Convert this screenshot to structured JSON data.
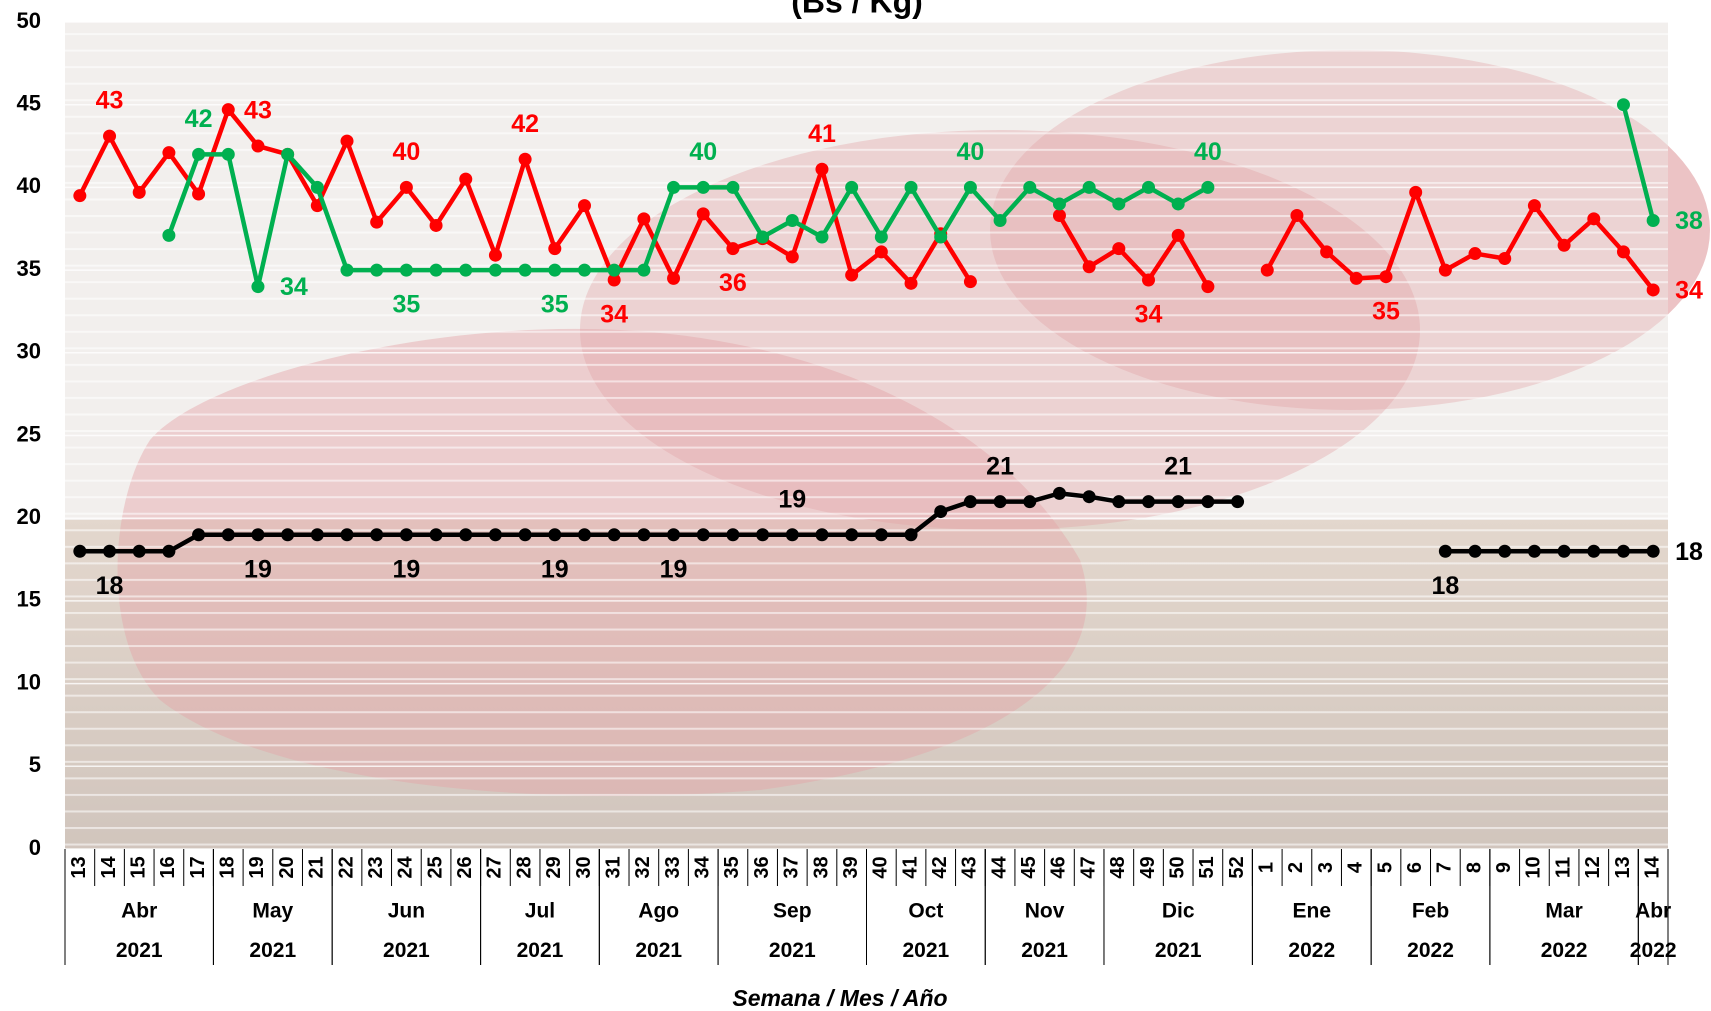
{
  "chart_data": {
    "type": "line",
    "title": "(Bs / Kg)",
    "x_label": "Semana / Mes / Año",
    "categories": [
      [
        "13",
        "Abr",
        "2021"
      ],
      [
        "14",
        "Abr",
        "2021"
      ],
      [
        "15",
        "Abr",
        "2021"
      ],
      [
        "16",
        "Abr",
        "2021"
      ],
      [
        "17",
        "Abr",
        "2021"
      ],
      [
        "18",
        "May",
        "2021"
      ],
      [
        "19",
        "May",
        "2021"
      ],
      [
        "20",
        "May",
        "2021"
      ],
      [
        "21",
        "May",
        "2021"
      ],
      [
        "22",
        "Jun",
        "2021"
      ],
      [
        "23",
        "Jun",
        "2021"
      ],
      [
        "24",
        "Jun",
        "2021"
      ],
      [
        "25",
        "Jun",
        "2021"
      ],
      [
        "26",
        "Jun",
        "2021"
      ],
      [
        "27",
        "Jul",
        "2021"
      ],
      [
        "28",
        "Jul",
        "2021"
      ],
      [
        "29",
        "Jul",
        "2021"
      ],
      [
        "30",
        "Jul",
        "2021"
      ],
      [
        "31",
        "Ago",
        "2021"
      ],
      [
        "32",
        "Ago",
        "2021"
      ],
      [
        "33",
        "Ago",
        "2021"
      ],
      [
        "34",
        "Ago",
        "2021"
      ],
      [
        "35",
        "Sep",
        "2021"
      ],
      [
        "36",
        "Sep",
        "2021"
      ],
      [
        "37",
        "Sep",
        "2021"
      ],
      [
        "38",
        "Sep",
        "2021"
      ],
      [
        "39",
        "Sep",
        "2021"
      ],
      [
        "40",
        "Oct",
        "2021"
      ],
      [
        "41",
        "Oct",
        "2021"
      ],
      [
        "42",
        "Oct",
        "2021"
      ],
      [
        "43",
        "Oct",
        "2021"
      ],
      [
        "44",
        "Nov",
        "2021"
      ],
      [
        "45",
        "Nov",
        "2021"
      ],
      [
        "46",
        "Nov",
        "2021"
      ],
      [
        "47",
        "Nov",
        "2021"
      ],
      [
        "48",
        "Dic",
        "2021"
      ],
      [
        "49",
        "Dic",
        "2021"
      ],
      [
        "50",
        "Dic",
        "2021"
      ],
      [
        "51",
        "Dic",
        "2021"
      ],
      [
        "52",
        "Dic",
        "2021"
      ],
      [
        "1",
        "Ene",
        "2022"
      ],
      [
        "2",
        "Ene",
        "2022"
      ],
      [
        "3",
        "Ene",
        "2022"
      ],
      [
        "4",
        "Ene",
        "2022"
      ],
      [
        "5",
        "Feb",
        "2022"
      ],
      [
        "6",
        "Feb",
        "2022"
      ],
      [
        "7",
        "Feb",
        "2022"
      ],
      [
        "8",
        "Feb",
        "2022"
      ],
      [
        "9",
        "Mar",
        "2022"
      ],
      [
        "10",
        "Mar",
        "2022"
      ],
      [
        "11",
        "Mar",
        "2022"
      ],
      [
        "12",
        "Mar",
        "2022"
      ],
      [
        "13",
        "Mar",
        "2022"
      ],
      [
        "14",
        "Abr",
        "2022"
      ]
    ],
    "series": [
      {
        "color": "#ff0000",
        "values": [
          39.5,
          43.1,
          39.7,
          42.1,
          39.6,
          44.7,
          42.5,
          42.0,
          38.9,
          42.8,
          37.9,
          40.0,
          37.7,
          40.5,
          35.9,
          41.7,
          36.3,
          38.9,
          34.4,
          38.1,
          34.5,
          38.4,
          36.3,
          36.9,
          35.8,
          41.1,
          34.7,
          36.1,
          34.2,
          37.2,
          34.3,
          null,
          null,
          38.3,
          35.2,
          36.3,
          34.4,
          37.1,
          34.0,
          null,
          35.0,
          38.3,
          36.1,
          34.5,
          34.6,
          39.7,
          35.0,
          36.0,
          35.7,
          38.9,
          36.5,
          38.1,
          36.1,
          33.8
        ],
        "value_labels": [
          null,
          "43",
          null,
          null,
          null,
          null,
          "43",
          null,
          null,
          null,
          null,
          "40",
          null,
          null,
          null,
          "42",
          null,
          null,
          "34",
          null,
          null,
          null,
          "36",
          null,
          null,
          "41",
          null,
          null,
          null,
          null,
          null,
          null,
          null,
          null,
          null,
          null,
          "34",
          null,
          null,
          null,
          null,
          null,
          null,
          null,
          "35",
          null,
          null,
          null,
          null,
          null,
          null,
          null,
          null,
          "34"
        ]
      },
      {
        "color": "#00b050",
        "values": [
          null,
          null,
          null,
          37.1,
          42.0,
          42.0,
          34.0,
          42.0,
          40.0,
          35,
          35,
          35,
          35,
          35,
          35,
          35,
          35,
          35,
          35,
          35,
          40,
          40,
          40,
          37,
          38,
          37,
          40,
          37,
          40,
          37,
          40,
          38,
          40,
          39,
          40,
          39,
          40,
          39,
          40,
          null,
          null,
          null,
          null,
          null,
          null,
          null,
          null,
          null,
          null,
          null,
          null,
          null,
          45,
          38
        ],
        "value_labels": [
          null,
          null,
          null,
          null,
          "42",
          null,
          "34",
          null,
          null,
          null,
          null,
          "35",
          null,
          null,
          null,
          null,
          "35",
          null,
          null,
          null,
          null,
          "40",
          null,
          null,
          null,
          null,
          null,
          null,
          null,
          null,
          "40",
          null,
          null,
          null,
          null,
          null,
          null,
          null,
          "40",
          null,
          null,
          null,
          null,
          null,
          null,
          null,
          null,
          null,
          null,
          null,
          null,
          null,
          null,
          "38"
        ]
      },
      {
        "color": "#000000",
        "values": [
          18,
          18,
          18,
          18,
          19,
          19,
          19,
          19,
          19,
          19,
          19,
          19,
          19,
          19,
          19,
          19,
          19,
          19,
          19,
          19,
          19,
          19,
          19,
          19,
          19,
          19,
          19,
          19,
          19,
          20.4,
          21,
          21,
          21,
          21.5,
          21.3,
          21,
          21,
          21,
          21,
          21,
          null,
          null,
          null,
          null,
          null,
          null,
          18,
          18,
          18,
          18,
          18,
          18,
          18,
          18
        ],
        "value_labels": [
          null,
          "18",
          null,
          null,
          null,
          null,
          "19",
          null,
          null,
          null,
          null,
          "19",
          null,
          null,
          null,
          null,
          "19",
          null,
          null,
          null,
          "19",
          null,
          null,
          null,
          "19",
          null,
          null,
          null,
          null,
          null,
          null,
          "21",
          null,
          null,
          null,
          null,
          null,
          "21",
          null,
          null,
          null,
          null,
          null,
          null,
          null,
          null,
          "18",
          null,
          null,
          null,
          null,
          null,
          null,
          "18"
        ]
      }
    ],
    "ylim": [
      0,
      50
    ],
    "yticks": [
      0,
      5,
      10,
      15,
      20,
      25,
      30,
      35,
      40,
      45,
      50
    ]
  }
}
